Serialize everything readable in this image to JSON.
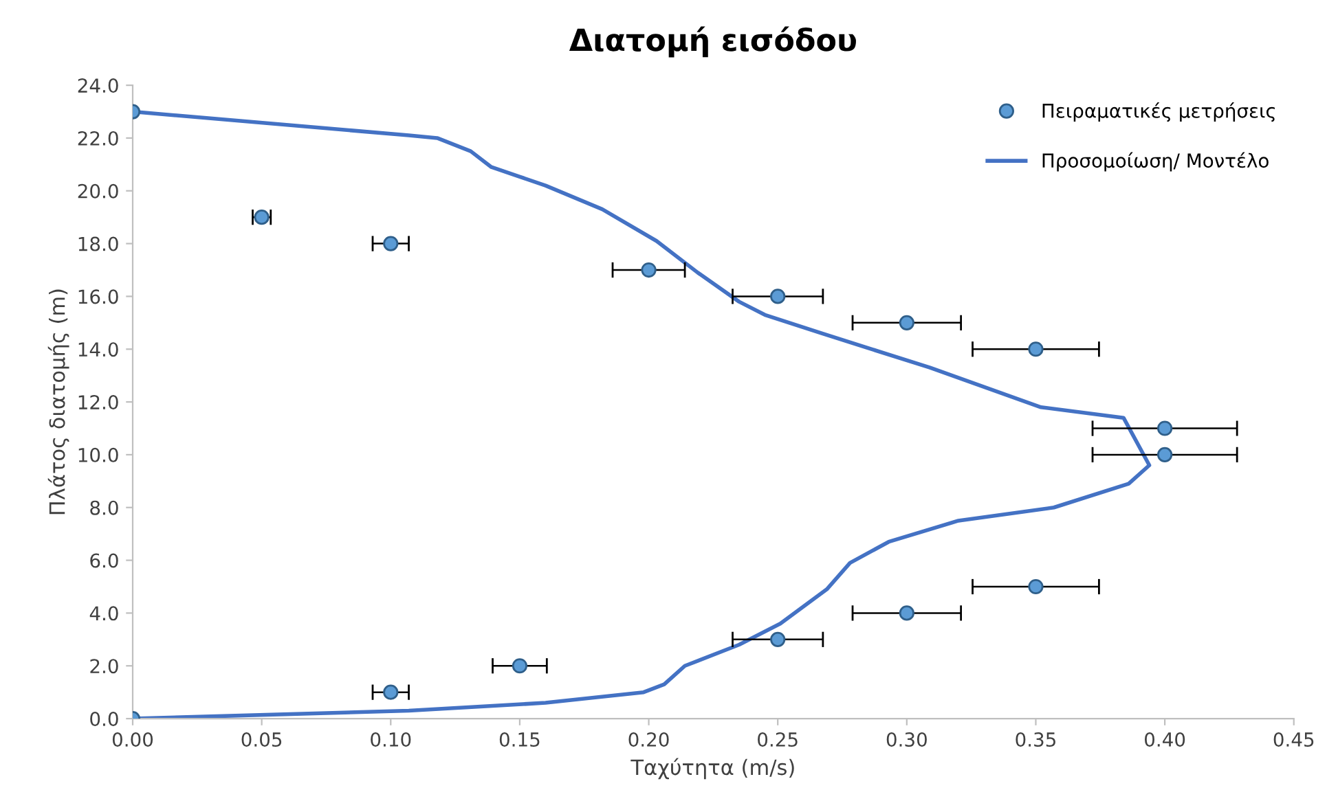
{
  "chart_data": {
    "type": "scatter",
    "title": "Διατομή εισόδου",
    "xlabel": "Ταχύτητα (m/s)",
    "ylabel": "Πλάτος διατομής (m)",
    "xlim": [
      0,
      0.45
    ],
    "ylim": [
      0,
      24
    ],
    "xticks": [
      {
        "value": 0,
        "label": "0.00"
      },
      {
        "value": 0.05,
        "label": "0.05"
      },
      {
        "value": 0.1,
        "label": "0.10"
      },
      {
        "value": 0.15,
        "label": "0.15"
      },
      {
        "value": 0.2,
        "label": "0.20"
      },
      {
        "value": 0.25,
        "label": "0.25"
      },
      {
        "value": 0.3,
        "label": "0.30"
      },
      {
        "value": 0.35,
        "label": "0.35"
      },
      {
        "value": 0.4,
        "label": "0.40"
      },
      {
        "value": 0.45,
        "label": "0.45"
      }
    ],
    "yticks": [
      {
        "value": 0,
        "label": "0.0"
      },
      {
        "value": 2,
        "label": "2.0"
      },
      {
        "value": 4,
        "label": "4.0"
      },
      {
        "value": 6,
        "label": "6.0"
      },
      {
        "value": 8,
        "label": "8.0"
      },
      {
        "value": 10,
        "label": "10.0"
      },
      {
        "value": 12,
        "label": "12.0"
      },
      {
        "value": 14,
        "label": "14.0"
      },
      {
        "value": 16,
        "label": "16.0"
      },
      {
        "value": 18,
        "label": "18.0"
      },
      {
        "value": 20,
        "label": "20.0"
      },
      {
        "value": 22,
        "label": "22.0"
      },
      {
        "value": 24,
        "label": "24.0"
      }
    ],
    "grid": false,
    "legend": "top right",
    "marker": "circle",
    "series": [
      {
        "name": "Πειραματικές μετρήσεις",
        "color": "#5b9bd5",
        "x": [
          0,
          0.05,
          0.1,
          0.2,
          0.25,
          0.3,
          0.35,
          0.4,
          0.4,
          0.35,
          0.3,
          0.25,
          0.15,
          0.1,
          0
        ],
        "values": [
          23,
          19,
          18,
          17,
          16,
          15,
          14,
          11,
          10,
          5,
          4,
          3,
          2,
          1,
          0
        ],
        "xerrors": [
          null,
          0.0035,
          0.007,
          0.014,
          0.0175,
          0.021,
          0.0245,
          0.028,
          0.028,
          0.0245,
          0.021,
          0.0175,
          0.0105,
          0.007,
          null
        ]
      },
      {
        "name": "Προσομοίωση/ Μοντέλο",
        "type": "line",
        "color": "#4472c4",
        "marker": "none",
        "line_style": "solid",
        "x": [
          0,
          0.107,
          0.118,
          0.131,
          0.139,
          0.16,
          0.182,
          0.203,
          0.219,
          0.235,
          0.245,
          0.267,
          0.309,
          0.352,
          0.384,
          0.394,
          0.386,
          0.357,
          0.32,
          0.293,
          0.278,
          0.269,
          0.251,
          0.235,
          0.214,
          0.206,
          0.198,
          0.16,
          0.107,
          0
        ],
        "values": [
          23,
          22.1,
          22,
          21.5,
          20.9,
          20.2,
          19.3,
          18.1,
          16.9,
          15.8,
          15.3,
          14.6,
          13.3,
          11.8,
          11.4,
          9.6,
          8.9,
          8,
          7.5,
          6.7,
          5.9,
          4.9,
          3.6,
          2.8,
          2,
          1.3,
          1,
          0.6,
          0.3,
          0
        ]
      }
    ]
  }
}
